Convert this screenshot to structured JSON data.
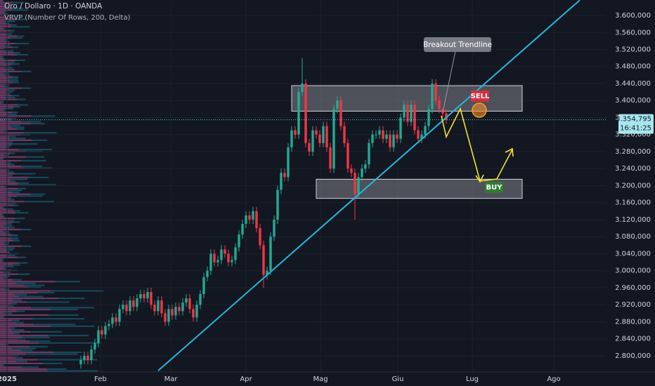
{
  "chart_data": {
    "type": "candlestick",
    "title": "Oro / Dollaro · 1D · OANDA",
    "subtitle": "VRVP (Number Of Rows, 200, Delta)",
    "up_color": "#22ab94",
    "down_color": "#f23645",
    "grid": true,
    "x": [
      23,
      24,
      25,
      26,
      27,
      28,
      29,
      30,
      31,
      32,
      33,
      34,
      35,
      36,
      37,
      38,
      39,
      40,
      41,
      42,
      43,
      44,
      45,
      46,
      47,
      48,
      49,
      50,
      51,
      52,
      53,
      54,
      55,
      56,
      57,
      58,
      59,
      60,
      61,
      62,
      63,
      64,
      65,
      66,
      67,
      68,
      69,
      70,
      71,
      72,
      73,
      74,
      75,
      76,
      77,
      78,
      79,
      80,
      81,
      82,
      83,
      84,
      85,
      86,
      87,
      88,
      89,
      90,
      91,
      92,
      93,
      94,
      95,
      96,
      97,
      98,
      99,
      100,
      101,
      102,
      103,
      104,
      105,
      106,
      107,
      108,
      109,
      110,
      111,
      112,
      113,
      114,
      115,
      116,
      117,
      118,
      119,
      120,
      121,
      122,
      123,
      124,
      125,
      126,
      127
    ],
    "open": [
      2780,
      2790,
      2800,
      2790,
      2815,
      2830,
      2860,
      2850,
      2870,
      2875,
      2890,
      2880,
      2910,
      2920,
      2905,
      2930,
      2915,
      2935,
      2945,
      2935,
      2950,
      2920,
      2905,
      2930,
      2900,
      2880,
      2910,
      2895,
      2915,
      2905,
      2925,
      2935,
      2910,
      2890,
      2920,
      2945,
      2985,
      3000,
      3040,
      3020,
      3025,
      3050,
      3040,
      3020,
      3025,
      3055,
      3085,
      3110,
      3130,
      3120,
      3140,
      3100,
      3060,
      2990,
      3000,
      3080,
      3120,
      3190,
      3230,
      3220,
      3290,
      3330,
      3320,
      3420,
      3440,
      3300,
      3280,
      3330,
      3320,
      3300,
      3340,
      3290,
      3240,
      3380,
      3400,
      3340,
      3300,
      3240,
      3230,
      3180,
      3220,
      3240,
      3250,
      3300,
      3320,
      3320,
      3330,
      3310,
      3320,
      3290,
      3320,
      3310,
      3360,
      3390,
      3350,
      3390,
      3330,
      3310,
      3320,
      3340,
      3380,
      3440,
      3400,
      3380,
      3370
    ],
    "high": [
      2800,
      2810,
      2810,
      2825,
      2840,
      2870,
      2870,
      2880,
      2885,
      2900,
      2900,
      2920,
      2930,
      2930,
      2940,
      2940,
      2945,
      2955,
      2955,
      2960,
      2960,
      2930,
      2940,
      2940,
      2910,
      2920,
      2920,
      2925,
      2925,
      2935,
      2945,
      2945,
      2920,
      2930,
      2955,
      2995,
      3010,
      3050,
      3050,
      3035,
      3060,
      3060,
      3050,
      3035,
      3065,
      3095,
      3120,
      3140,
      3140,
      3150,
      3150,
      3110,
      3070,
      3010,
      3090,
      3130,
      3200,
      3240,
      3240,
      3300,
      3340,
      3340,
      3430,
      3500,
      3450,
      3310,
      3340,
      3340,
      3330,
      3350,
      3350,
      3300,
      3390,
      3410,
      3410,
      3350,
      3310,
      3250,
      3240,
      3230,
      3250,
      3260,
      3310,
      3330,
      3330,
      3340,
      3340,
      3330,
      3330,
      3330,
      3330,
      3370,
      3400,
      3400,
      3400,
      3400,
      3340,
      3330,
      3350,
      3390,
      3450,
      3450,
      3410,
      3380,
      3380
    ],
    "low": [
      2770,
      2780,
      2780,
      2780,
      2805,
      2820,
      2840,
      2840,
      2860,
      2865,
      2870,
      2870,
      2900,
      2895,
      2895,
      2905,
      2905,
      2925,
      2925,
      2925,
      2910,
      2895,
      2895,
      2890,
      2870,
      2870,
      2885,
      2885,
      2895,
      2895,
      2915,
      2900,
      2880,
      2880,
      2910,
      2935,
      2975,
      2990,
      3010,
      3010,
      3015,
      3030,
      3010,
      3010,
      3015,
      3045,
      3075,
      3100,
      3110,
      3110,
      3090,
      3050,
      2960,
      2980,
      2990,
      3070,
      3110,
      3180,
      3210,
      3210,
      3280,
      3310,
      3310,
      3410,
      3290,
      3270,
      3270,
      3310,
      3290,
      3290,
      3280,
      3230,
      3230,
      3370,
      3330,
      3290,
      3230,
      3220,
      3120,
      3170,
      3210,
      3230,
      3240,
      3290,
      3310,
      3310,
      3300,
      3300,
      3280,
      3280,
      3300,
      3300,
      3350,
      3340,
      3340,
      3320,
      3300,
      3300,
      3310,
      3330,
      3370,
      3390,
      3370,
      3360,
      3345
    ],
    "close": [
      2790,
      2800,
      2790,
      2815,
      2830,
      2860,
      2850,
      2870,
      2875,
      2890,
      2880,
      2910,
      2920,
      2905,
      2930,
      2915,
      2935,
      2945,
      2935,
      2950,
      2920,
      2905,
      2930,
      2900,
      2880,
      2910,
      2895,
      2915,
      2905,
      2925,
      2935,
      2910,
      2890,
      2920,
      2945,
      2985,
      3000,
      3040,
      3020,
      3025,
      3050,
      3040,
      3020,
      3025,
      3055,
      3085,
      3110,
      3130,
      3120,
      3140,
      3100,
      3060,
      2990,
      3000,
      3080,
      3120,
      3190,
      3230,
      3220,
      3290,
      3330,
      3320,
      3420,
      3440,
      3300,
      3280,
      3330,
      3320,
      3300,
      3340,
      3290,
      3240,
      3380,
      3400,
      3340,
      3300,
      3240,
      3230,
      3180,
      3220,
      3240,
      3250,
      3300,
      3320,
      3320,
      3330,
      3310,
      3320,
      3290,
      3320,
      3310,
      3360,
      3390,
      3350,
      3390,
      3330,
      3310,
      3320,
      3340,
      3380,
      3440,
      3400,
      3380,
      3370,
      3355
    ],
    "xlim": [
      0,
      172.4
    ],
    "ylim": [
      2762,
      3636.3
    ],
    "xticks": [
      {
        "value": 2,
        "label": "2025"
      },
      {
        "value": 28.6,
        "label": "Feb"
      },
      {
        "value": 48.6,
        "label": "Mar"
      },
      {
        "value": 70,
        "label": "Apr"
      },
      {
        "value": 91.2,
        "label": "Mag"
      },
      {
        "value": 113.2,
        "label": "Giu"
      },
      {
        "value": 134.4,
        "label": "Lug"
      },
      {
        "value": 157.6,
        "label": "Ago"
      }
    ],
    "yticks": [
      {
        "value": 2800,
        "label": "2.800,000"
      },
      {
        "value": 2840,
        "label": "2.840,000"
      },
      {
        "value": 2880,
        "label": "2.880,000"
      },
      {
        "value": 2920,
        "label": "2.920,000"
      },
      {
        "value": 2960,
        "label": "2.960,000"
      },
      {
        "value": 3000,
        "label": "3.000,000"
      },
      {
        "value": 3040,
        "label": "3.040,000"
      },
      {
        "value": 3080,
        "label": "3.080,000"
      },
      {
        "value": 3120,
        "label": "3.120,000"
      },
      {
        "value": 3160,
        "label": "3.160,000"
      },
      {
        "value": 3200,
        "label": "3.200,000"
      },
      {
        "value": 3240,
        "label": "3.240,000"
      },
      {
        "value": 3280,
        "label": "3.280,000"
      },
      {
        "value": 3320,
        "label": "3.320,000"
      },
      {
        "value": 3360,
        "label": "3.360,000"
      },
      {
        "value": 3400,
        "label": "3.400,000"
      },
      {
        "value": 3440,
        "label": "3.440,000"
      },
      {
        "value": 3480,
        "label": "3.480,000"
      },
      {
        "value": 3520,
        "label": "3.520,000"
      },
      {
        "value": 3560,
        "label": "3.560,000"
      },
      {
        "value": 3600,
        "label": "3.600,000"
      }
    ],
    "last_price": {
      "value": 3354.795,
      "label": "3.354,795",
      "countdown": "16:41:25"
    },
    "zones": [
      {
        "label": "SELL",
        "low": 3375,
        "high": 3435,
        "color": "#d32f3f"
      },
      {
        "label": "BUY",
        "low": 3170,
        "high": 3215,
        "color": "#2e7d32"
      }
    ],
    "trendline": {
      "label": "Breakout Trendline",
      "x": [
        45,
        165
      ],
      "y": [
        2765,
        3636
      ],
      "color": "#29b6d8"
    }
  }
}
